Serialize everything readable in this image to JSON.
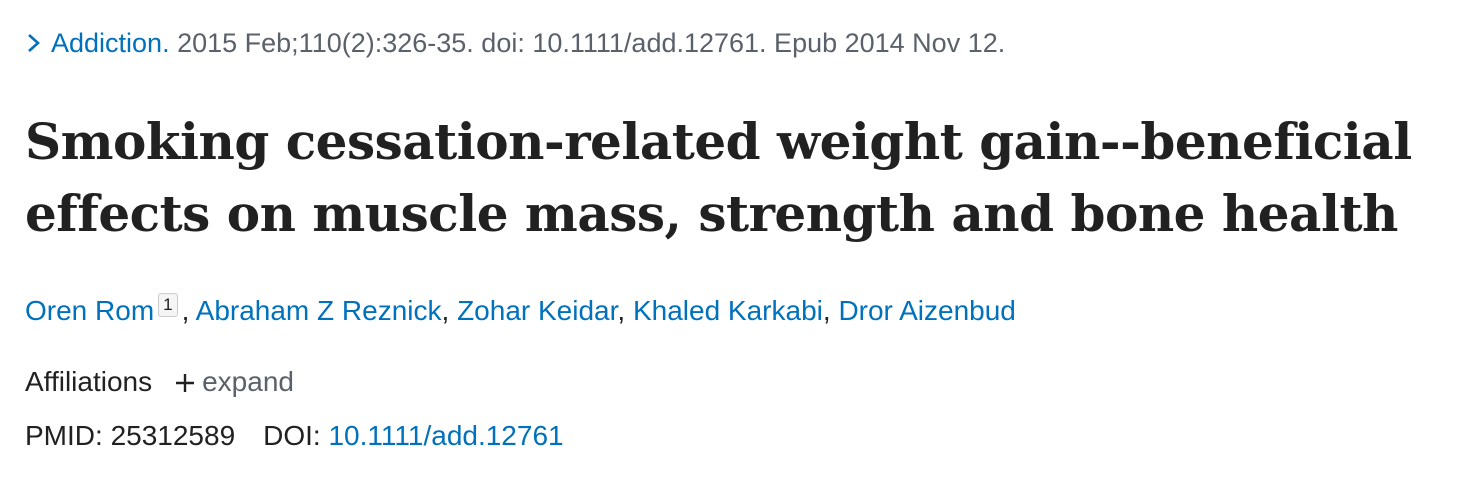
{
  "citation": {
    "journal": "Addiction.",
    "details": "2015 Feb;110(2):326-35. doi: 10.1111/add.12761. Epub 2014 Nov 12."
  },
  "title": "Smoking cessation-related weight gain--beneficial effects on muscle mass, strength and bone health",
  "authors": {
    "separator": ",",
    "list": [
      {
        "name": "Oren Rom",
        "affiliation": "1"
      },
      {
        "name": "Abraham Z Reznick"
      },
      {
        "name": "Zohar Keidar"
      },
      {
        "name": "Khaled Karkabi"
      },
      {
        "name": "Dror Aizenbud"
      }
    ]
  },
  "affiliations": {
    "label": "Affiliations",
    "toggle": "expand"
  },
  "identifiers": {
    "pmid_label": "PMID:",
    "pmid": "25312589",
    "doi_label": "DOI:",
    "doi": "10.1111/add.12761"
  }
}
